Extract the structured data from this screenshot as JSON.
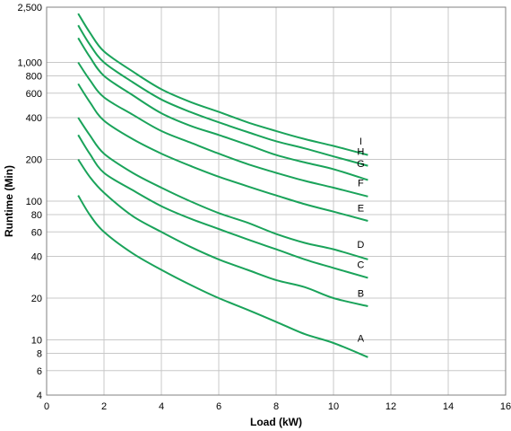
{
  "chart_data": {
    "type": "line",
    "xlabel": "Load (kW)",
    "ylabel": "Runtime (Min)",
    "xlim": [
      0,
      16
    ],
    "ylim": [
      4,
      2500
    ],
    "yscale": "log",
    "grid": true,
    "line_color": "#1aa35a",
    "x_ticks": [
      "0",
      "2",
      "4",
      "6",
      "8",
      "10",
      "12",
      "14",
      "16"
    ],
    "y_ticks": [
      {
        "value": 4,
        "label": "4"
      },
      {
        "value": 6,
        "label": "6"
      },
      {
        "value": 8,
        "label": "8"
      },
      {
        "value": 10,
        "label": "10"
      },
      {
        "value": 20,
        "label": "20"
      },
      {
        "value": 40,
        "label": "40"
      },
      {
        "value": 60,
        "label": "60"
      },
      {
        "value": 80,
        "label": "80"
      },
      {
        "value": 100,
        "label": "100"
      },
      {
        "value": 200,
        "label": "200"
      },
      {
        "value": 400,
        "label": "400"
      },
      {
        "value": 600,
        "label": "600"
      },
      {
        "value": 800,
        "label": "800"
      },
      {
        "value": 1000,
        "label": "1,000"
      },
      {
        "value": 2500,
        "label": "2,500"
      }
    ],
    "series": [
      {
        "name": "A",
        "x": [
          1.1,
          1.5,
          2,
          3,
          4,
          5,
          6,
          7,
          8,
          9,
          10,
          11.2
        ],
        "y": [
          110,
          80,
          60,
          42,
          32,
          25,
          20,
          16.5,
          13.5,
          11,
          9.5,
          7.5
        ]
      },
      {
        "name": "B",
        "x": [
          1.1,
          1.5,
          2,
          3,
          4,
          5,
          6,
          7,
          8,
          9,
          10,
          11.2
        ],
        "y": [
          200,
          150,
          115,
          78,
          60,
          47,
          38,
          32,
          27,
          24,
          20,
          17.5
        ]
      },
      {
        "name": "C",
        "x": [
          1.1,
          1.5,
          2,
          3,
          4,
          5,
          6,
          7,
          8,
          9,
          10,
          11.2
        ],
        "y": [
          300,
          220,
          160,
          120,
          92,
          75,
          63,
          53,
          45,
          38,
          33,
          28
        ]
      },
      {
        "name": "D",
        "x": [
          1.1,
          1.5,
          2,
          3,
          4,
          5,
          6,
          7,
          8,
          9,
          10,
          11.2
        ],
        "y": [
          400,
          300,
          220,
          160,
          125,
          100,
          82,
          70,
          58,
          50,
          45,
          38
        ]
      },
      {
        "name": "E",
        "x": [
          1.1,
          1.5,
          2,
          3,
          4,
          5,
          6,
          7,
          8,
          9,
          10,
          11.2
        ],
        "y": [
          700,
          520,
          380,
          280,
          220,
          180,
          150,
          128,
          110,
          95,
          84,
          72
        ]
      },
      {
        "name": "F",
        "x": [
          1.1,
          1.5,
          2,
          3,
          4,
          5,
          6,
          7,
          8,
          9,
          10,
          11.2
        ],
        "y": [
          1000,
          750,
          560,
          420,
          320,
          265,
          220,
          185,
          160,
          140,
          125,
          108
        ]
      },
      {
        "name": "G",
        "x": [
          1.1,
          1.5,
          2,
          3,
          4,
          5,
          6,
          7,
          8,
          9,
          10,
          11.2
        ],
        "y": [
          1500,
          1100,
          800,
          580,
          430,
          350,
          300,
          255,
          215,
          190,
          170,
          142
        ]
      },
      {
        "name": "H",
        "x": [
          1.1,
          1.5,
          2,
          3,
          4,
          5,
          6,
          7,
          8,
          9,
          10,
          11.2
        ],
        "y": [
          1850,
          1350,
          1000,
          720,
          540,
          440,
          370,
          315,
          270,
          240,
          210,
          180
        ]
      },
      {
        "name": "I",
        "x": [
          1.1,
          1.5,
          2,
          3,
          4,
          5,
          6,
          7,
          8,
          9,
          10,
          11.2
        ],
        "y": [
          2250,
          1650,
          1200,
          860,
          640,
          520,
          440,
          370,
          320,
          280,
          250,
          215
        ]
      }
    ],
    "series_label_points": [
      {
        "name": "A",
        "x": 10.95,
        "y": 9.7
      },
      {
        "name": "B",
        "x": 10.95,
        "y": 20.5
      },
      {
        "name": "C",
        "x": 10.95,
        "y": 33
      },
      {
        "name": "D",
        "x": 10.95,
        "y": 46
      },
      {
        "name": "E",
        "x": 10.95,
        "y": 84
      },
      {
        "name": "F",
        "x": 10.95,
        "y": 128
      },
      {
        "name": "G",
        "x": 10.95,
        "y": 176
      },
      {
        "name": "H",
        "x": 10.95,
        "y": 215
      },
      {
        "name": "I",
        "x": 10.95,
        "y": 255
      }
    ]
  }
}
